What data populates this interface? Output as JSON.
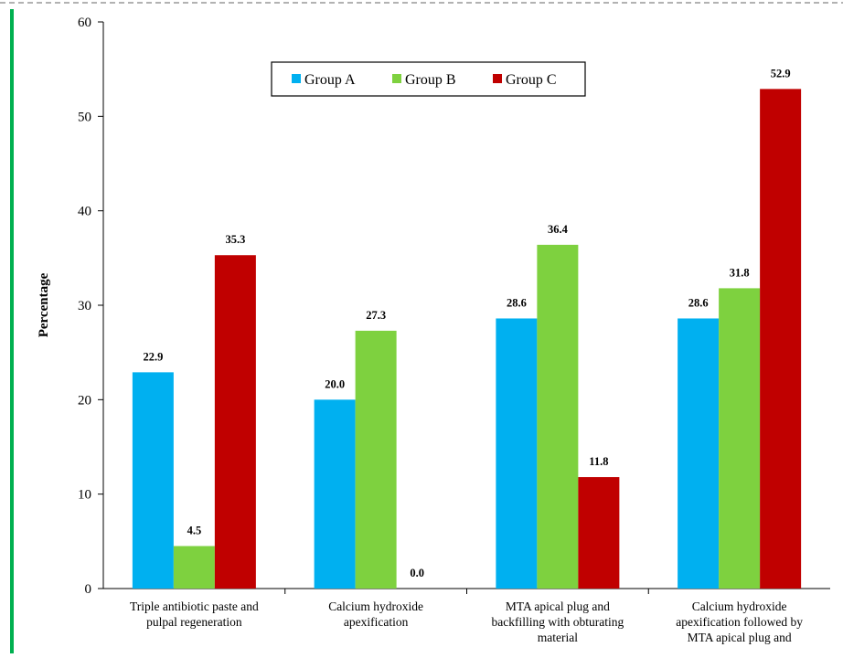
{
  "chart_data": {
    "type": "bar",
    "title": "",
    "xlabel": "",
    "ylabel": "Percentage",
    "ylim": [
      0,
      60
    ],
    "yticks": [
      0,
      10,
      20,
      30,
      40,
      50,
      60
    ],
    "grid": false,
    "legend_position": "top-center",
    "categories": [
      [
        "Triple antibiotic paste and",
        "pulpal regeneration"
      ],
      [
        "Calcium hydroxide",
        "apexification"
      ],
      [
        "MTA apical plug and",
        "backfilling with obturating",
        "material"
      ],
      [
        "Calcium hydroxide",
        "apexification followed by",
        "MTA apical plug and"
      ]
    ],
    "series": [
      {
        "name": "Group A",
        "color": "#00B0F0",
        "values": [
          22.9,
          20.0,
          28.6,
          28.6
        ],
        "labels": [
          "22.9",
          "20.0",
          "28.6",
          "28.6"
        ]
      },
      {
        "name": "Group B",
        "color": "#7ED13F",
        "values": [
          4.5,
          27.3,
          36.4,
          31.8
        ],
        "labels": [
          "4.5",
          "27.3",
          "36.4",
          "31.8"
        ]
      },
      {
        "name": "Group C",
        "color": "#C00000",
        "values": [
          35.3,
          0.0,
          11.8,
          52.9
        ],
        "labels": [
          "35.3",
          "0.0",
          "11.8",
          "52.9"
        ]
      }
    ]
  },
  "decor": {
    "frame_dash_color": "#999999",
    "left_accent_color": "#00B050"
  }
}
